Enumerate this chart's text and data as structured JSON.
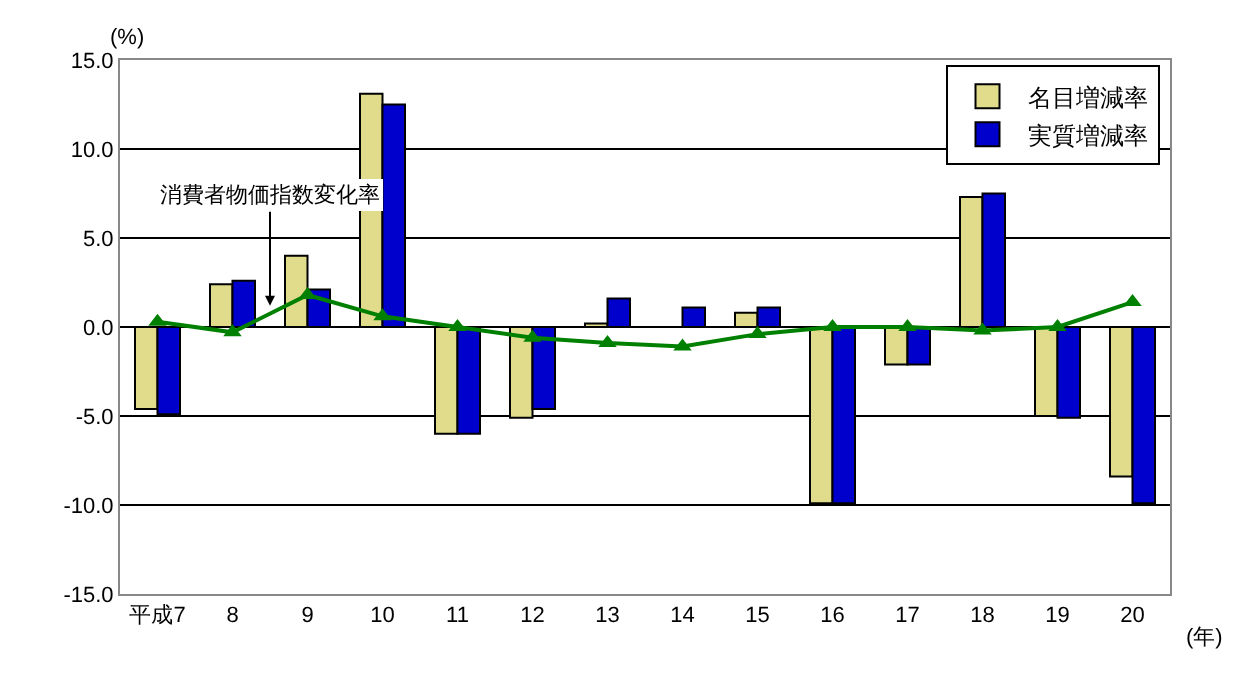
{
  "chart_data": {
    "type": "bar",
    "ylabel": "(%)",
    "xlabel": "(年)",
    "categories": [
      "平成7",
      "8",
      "9",
      "10",
      "11",
      "12",
      "13",
      "14",
      "15",
      "16",
      "17",
      "18",
      "19",
      "20"
    ],
    "series": [
      {
        "name": "名目増減率",
        "color": "#e0dc8c",
        "values": [
          -4.6,
          2.4,
          4.0,
          13.1,
          -6.0,
          -5.1,
          0.2,
          null,
          0.8,
          -9.9,
          -2.1,
          7.3,
          -5.0,
          -8.4
        ]
      },
      {
        "name": "実質増減率",
        "color": "#0000cc",
        "values": [
          -4.9,
          2.6,
          2.1,
          12.5,
          -6.0,
          -4.6,
          1.6,
          1.1,
          1.1,
          -9.9,
          -2.1,
          7.5,
          -5.1,
          -9.9
        ]
      },
      {
        "type": "line",
        "color": "#008000",
        "marker": "triangle",
        "values": [
          0.3,
          -0.3,
          1.8,
          0.6,
          0.0,
          -0.6,
          -0.9,
          -1.1,
          -0.4,
          0.0,
          0.0,
          -0.2,
          0.0,
          1.4
        ]
      }
    ],
    "annotations": [
      {
        "text": "消費者物価指数変化率",
        "y": 1.2
      }
    ],
    "ylim": [
      -15,
      15
    ],
    "yticks": [
      {
        "value": -15,
        "label": "-15.0"
      },
      {
        "value": -10,
        "label": "-10.0"
      },
      {
        "value": -5,
        "label": "-5.0"
      },
      {
        "value": 0,
        "label": "0.0"
      },
      {
        "value": 5,
        "label": "5.0"
      },
      {
        "value": 10,
        "label": "10.0"
      },
      {
        "value": 15,
        "label": "15.0"
      }
    ],
    "grid": "y",
    "legend": "top right"
  }
}
